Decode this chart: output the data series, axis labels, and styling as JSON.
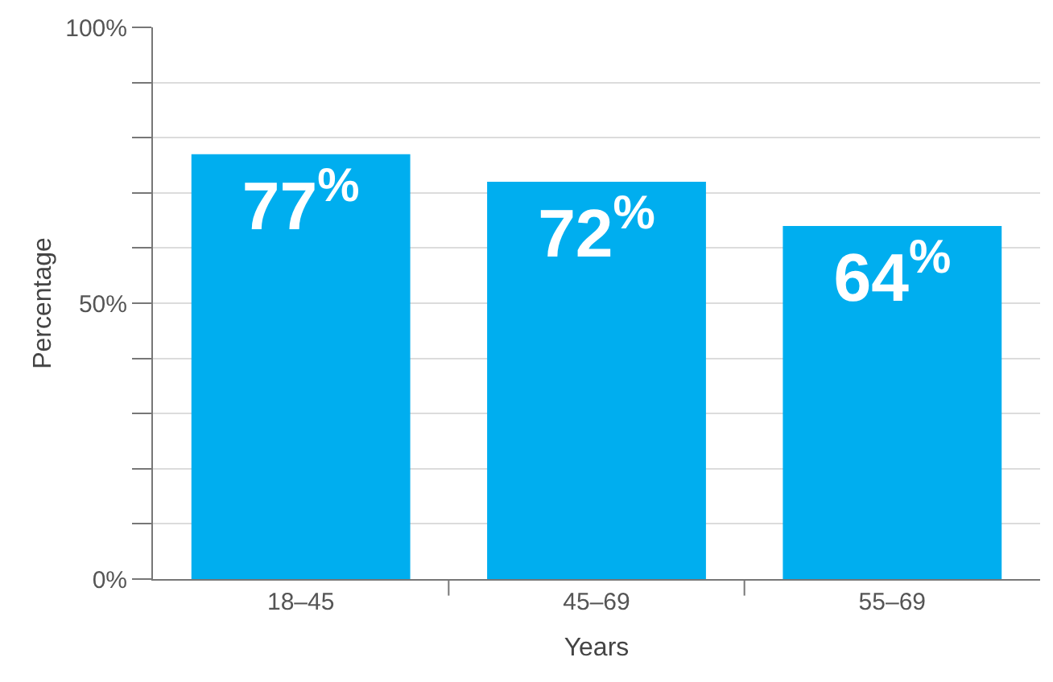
{
  "chart_data": {
    "type": "bar",
    "xlabel": "Years",
    "ylabel": "Percentage",
    "categories": [
      "18–45",
      "45–69",
      "55–69"
    ],
    "values": [
      77,
      72,
      64
    ],
    "color": "#00aeef",
    "value_labels": [
      "77$^{%}$",
      "72$^{%}$",
      "64$^{%}$"
    ],
    "ylim": [
      0,
      100
    ],
    "yticks": [
      {
        "value": 0,
        "label": "0%"
      },
      {
        "value": 10,
        "label": null
      },
      {
        "value": 20,
        "label": null
      },
      {
        "value": 30,
        "label": null
      },
      {
        "value": 40,
        "label": null
      },
      {
        "value": 50,
        "label": "50%"
      },
      {
        "value": 60,
        "label": null
      },
      {
        "value": 70,
        "label": null
      },
      {
        "value": 80,
        "label": null
      },
      {
        "value": 90,
        "label": null
      },
      {
        "value": 100,
        "label": "100%"
      }
    ],
    "grid": true
  }
}
